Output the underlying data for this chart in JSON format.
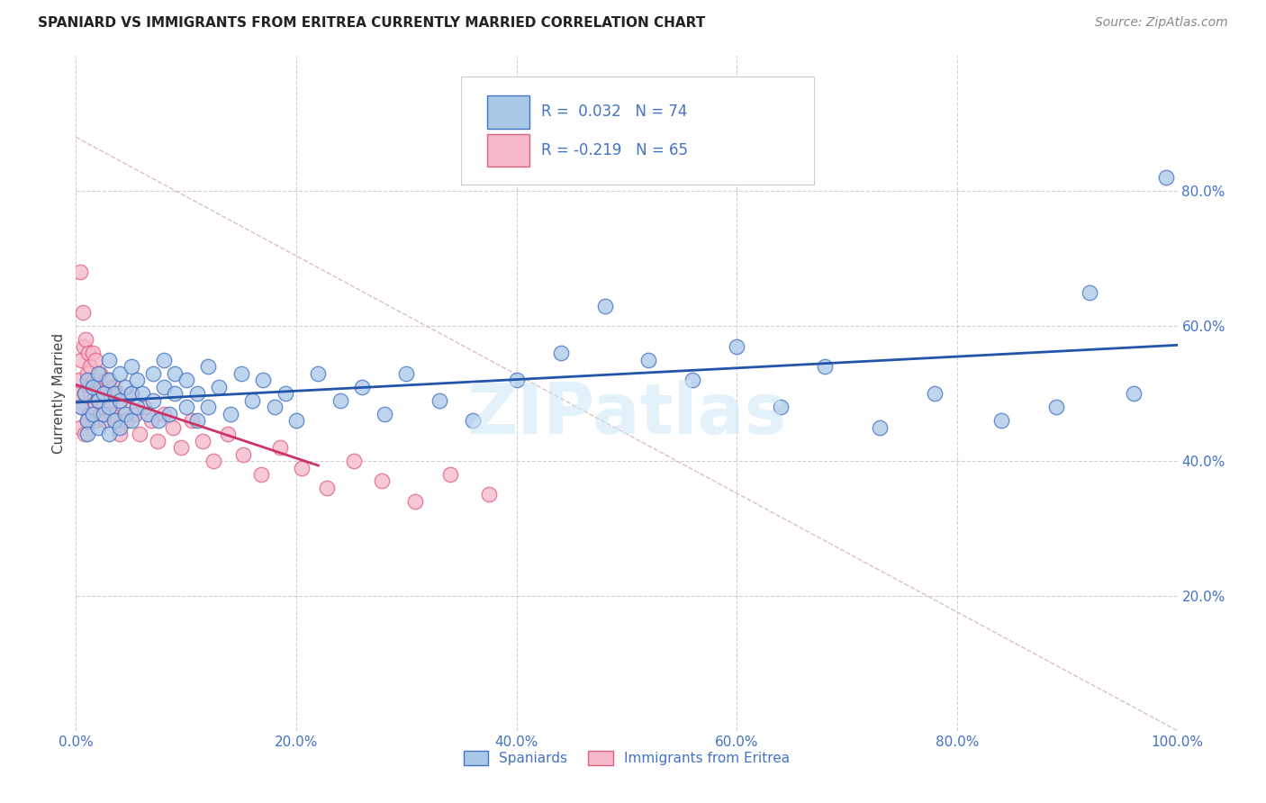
{
  "title": "SPANIARD VS IMMIGRANTS FROM ERITREA CURRENTLY MARRIED CORRELATION CHART",
  "source": "Source: ZipAtlas.com",
  "ylabel": "Currently Married",
  "watermark": "ZIPatlas",
  "xlim": [
    0.0,
    1.0
  ],
  "ylim": [
    0.0,
    1.0
  ],
  "xticks": [
    0.0,
    0.2,
    0.4,
    0.6,
    0.8,
    1.0
  ],
  "yticks": [
    0.2,
    0.4,
    0.6,
    0.8
  ],
  "xticklabels": [
    "0.0%",
    "20.0%",
    "40.0%",
    "60.0%",
    "80.0%",
    "100.0%"
  ],
  "yticklabels": [
    "20.0%",
    "40.0%",
    "60.0%",
    "80.0%"
  ],
  "legend_labels": [
    "Spaniards",
    "Immigrants from Eritrea"
  ],
  "blue_R": "0.032",
  "blue_N": "74",
  "pink_R": "-0.219",
  "pink_N": "65",
  "blue_color": "#a8c8e8",
  "pink_color": "#f5b8c8",
  "blue_edge_color": "#4472c4",
  "pink_edge_color": "#e06080",
  "blue_line_color": "#2255aa",
  "pink_line_color": "#cc3366",
  "diag_color": "#ddbbcc",
  "grid_color": "#cccccc",
  "background_color": "#ffffff",
  "spaniards_x": [
    0.005,
    0.008,
    0.01,
    0.01,
    0.01,
    0.015,
    0.015,
    0.02,
    0.02,
    0.02,
    0.025,
    0.025,
    0.03,
    0.03,
    0.03,
    0.03,
    0.035,
    0.035,
    0.04,
    0.04,
    0.04,
    0.045,
    0.045,
    0.05,
    0.05,
    0.05,
    0.055,
    0.055,
    0.06,
    0.065,
    0.07,
    0.07,
    0.075,
    0.08,
    0.08,
    0.085,
    0.09,
    0.09,
    0.1,
    0.1,
    0.11,
    0.11,
    0.12,
    0.12,
    0.13,
    0.14,
    0.15,
    0.16,
    0.17,
    0.18,
    0.19,
    0.2,
    0.22,
    0.24,
    0.26,
    0.28,
    0.3,
    0.33,
    0.36,
    0.4,
    0.44,
    0.48,
    0.52,
    0.56,
    0.6,
    0.64,
    0.68,
    0.73,
    0.78,
    0.84,
    0.89,
    0.92,
    0.96,
    0.99
  ],
  "spaniards_y": [
    0.48,
    0.5,
    0.52,
    0.46,
    0.44,
    0.51,
    0.47,
    0.49,
    0.53,
    0.45,
    0.5,
    0.47,
    0.52,
    0.48,
    0.55,
    0.44,
    0.5,
    0.46,
    0.53,
    0.49,
    0.45,
    0.51,
    0.47,
    0.5,
    0.54,
    0.46,
    0.52,
    0.48,
    0.5,
    0.47,
    0.53,
    0.49,
    0.46,
    0.51,
    0.55,
    0.47,
    0.5,
    0.53,
    0.48,
    0.52,
    0.46,
    0.5,
    0.54,
    0.48,
    0.51,
    0.47,
    0.53,
    0.49,
    0.52,
    0.48,
    0.5,
    0.46,
    0.53,
    0.49,
    0.51,
    0.47,
    0.53,
    0.49,
    0.46,
    0.52,
    0.56,
    0.63,
    0.55,
    0.52,
    0.57,
    0.48,
    0.54,
    0.45,
    0.5,
    0.46,
    0.48,
    0.65,
    0.5,
    0.82
  ],
  "eritrea_x": [
    0.002,
    0.003,
    0.004,
    0.004,
    0.005,
    0.005,
    0.006,
    0.007,
    0.008,
    0.008,
    0.009,
    0.01,
    0.01,
    0.011,
    0.012,
    0.012,
    0.013,
    0.014,
    0.015,
    0.015,
    0.016,
    0.017,
    0.018,
    0.018,
    0.019,
    0.02,
    0.021,
    0.022,
    0.023,
    0.024,
    0.025,
    0.026,
    0.027,
    0.028,
    0.03,
    0.032,
    0.034,
    0.036,
    0.038,
    0.04,
    0.043,
    0.046,
    0.05,
    0.054,
    0.058,
    0.062,
    0.068,
    0.074,
    0.08,
    0.088,
    0.095,
    0.105,
    0.115,
    0.125,
    0.138,
    0.152,
    0.168,
    0.185,
    0.205,
    0.228,
    0.252,
    0.278,
    0.308,
    0.34,
    0.375
  ],
  "eritrea_y": [
    0.5,
    0.52,
    0.68,
    0.45,
    0.55,
    0.48,
    0.62,
    0.57,
    0.5,
    0.44,
    0.58,
    0.53,
    0.46,
    0.56,
    0.51,
    0.47,
    0.54,
    0.5,
    0.56,
    0.49,
    0.52,
    0.48,
    0.55,
    0.46,
    0.52,
    0.5,
    0.49,
    0.53,
    0.47,
    0.51,
    0.48,
    0.5,
    0.46,
    0.52,
    0.49,
    0.47,
    0.51,
    0.46,
    0.5,
    0.44,
    0.48,
    0.46,
    0.5,
    0.47,
    0.44,
    0.48,
    0.46,
    0.43,
    0.47,
    0.45,
    0.42,
    0.46,
    0.43,
    0.4,
    0.44,
    0.41,
    0.38,
    0.42,
    0.39,
    0.36,
    0.4,
    0.37,
    0.34,
    0.38,
    0.35
  ]
}
